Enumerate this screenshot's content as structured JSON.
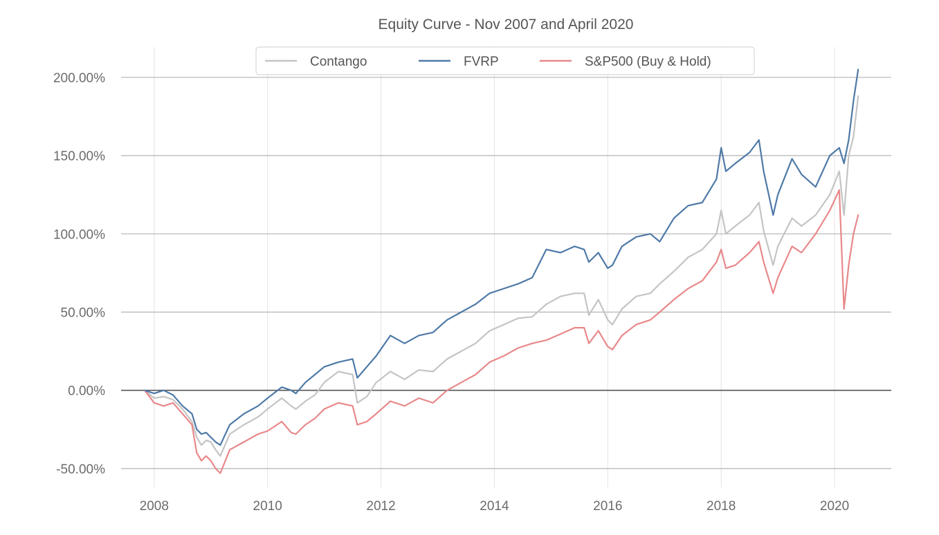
{
  "chart_data": {
    "type": "line",
    "title": "Equity Curve - Nov 2007 and April 2020",
    "xlabel": "",
    "ylabel": "",
    "x_ticks": [
      "2008",
      "2010",
      "2012",
      "2014",
      "2016",
      "2018",
      "2020"
    ],
    "y_ticks": [
      "-50.00%",
      "0.00%",
      "50.00%",
      "100.00%",
      "150.00%",
      "200.00%"
    ],
    "y_tick_values": [
      -50,
      0,
      50,
      100,
      150,
      200
    ],
    "xlim": [
      "2007-06",
      "2021-01"
    ],
    "ylim": [
      -62,
      215
    ],
    "grid": "horizontal-and-vertical",
    "legend": "top-center",
    "series": [
      {
        "name": "Contango",
        "color": "#c4c4c4",
        "points": [
          [
            "2007-11",
            0
          ],
          [
            "2008-01",
            -5
          ],
          [
            "2008-03",
            -4
          ],
          [
            "2008-05",
            -6
          ],
          [
            "2008-07",
            -12
          ],
          [
            "2008-09",
            -20
          ],
          [
            "2008-10",
            -30
          ],
          [
            "2008-11",
            -35
          ],
          [
            "2008-12",
            -32
          ],
          [
            "2009-01",
            -33
          ],
          [
            "2009-02",
            -38
          ],
          [
            "2009-03",
            -42
          ],
          [
            "2009-05",
            -28
          ],
          [
            "2009-08",
            -22
          ],
          [
            "2009-11",
            -17
          ],
          [
            "2010-01",
            -12
          ],
          [
            "2010-04",
            -5
          ],
          [
            "2010-06",
            -10
          ],
          [
            "2010-07",
            -12
          ],
          [
            "2010-09",
            -7
          ],
          [
            "2010-11",
            -3
          ],
          [
            "2011-01",
            5
          ],
          [
            "2011-04",
            12
          ],
          [
            "2011-07",
            10
          ],
          [
            "2011-08",
            -8
          ],
          [
            "2011-10",
            -4
          ],
          [
            "2011-12",
            5
          ],
          [
            "2012-03",
            12
          ],
          [
            "2012-06",
            7
          ],
          [
            "2012-09",
            13
          ],
          [
            "2012-12",
            12
          ],
          [
            "2013-03",
            20
          ],
          [
            "2013-06",
            25
          ],
          [
            "2013-09",
            30
          ],
          [
            "2013-12",
            38
          ],
          [
            "2014-03",
            42
          ],
          [
            "2014-06",
            46
          ],
          [
            "2014-09",
            47
          ],
          [
            "2014-12",
            55
          ],
          [
            "2015-03",
            60
          ],
          [
            "2015-06",
            62
          ],
          [
            "2015-08",
            62
          ],
          [
            "2015-09",
            48
          ],
          [
            "2015-11",
            58
          ],
          [
            "2016-01",
            45
          ],
          [
            "2016-02",
            42
          ],
          [
            "2016-04",
            52
          ],
          [
            "2016-07",
            60
          ],
          [
            "2016-10",
            62
          ],
          [
            "2016-12",
            68
          ],
          [
            "2017-03",
            76
          ],
          [
            "2017-06",
            85
          ],
          [
            "2017-09",
            90
          ],
          [
            "2017-12",
            100
          ],
          [
            "2018-01",
            115
          ],
          [
            "2018-02",
            100
          ],
          [
            "2018-04",
            105
          ],
          [
            "2018-07",
            112
          ],
          [
            "2018-09",
            120
          ],
          [
            "2018-10",
            102
          ],
          [
            "2018-12",
            80
          ],
          [
            "2019-01",
            92
          ],
          [
            "2019-04",
            110
          ],
          [
            "2019-06",
            105
          ],
          [
            "2019-09",
            112
          ],
          [
            "2019-12",
            125
          ],
          [
            "2020-02",
            140
          ],
          [
            "2020-03",
            112
          ],
          [
            "2020-04",
            150
          ],
          [
            "2020-05",
            162
          ],
          [
            "2020-06",
            188
          ]
        ]
      },
      {
        "name": "FVRP",
        "color": "#4e79a7",
        "points": [
          [
            "2007-11",
            0
          ],
          [
            "2008-01",
            -2
          ],
          [
            "2008-03",
            0
          ],
          [
            "2008-05",
            -3
          ],
          [
            "2008-07",
            -10
          ],
          [
            "2008-09",
            -15
          ],
          [
            "2008-10",
            -25
          ],
          [
            "2008-11",
            -28
          ],
          [
            "2008-12",
            -27
          ],
          [
            "2009-01",
            -30
          ],
          [
            "2009-02",
            -33
          ],
          [
            "2009-03",
            -35
          ],
          [
            "2009-05",
            -22
          ],
          [
            "2009-08",
            -15
          ],
          [
            "2009-11",
            -10
          ],
          [
            "2010-01",
            -5
          ],
          [
            "2010-04",
            2
          ],
          [
            "2010-06",
            0
          ],
          [
            "2010-07",
            -2
          ],
          [
            "2010-09",
            5
          ],
          [
            "2010-11",
            10
          ],
          [
            "2011-01",
            15
          ],
          [
            "2011-04",
            18
          ],
          [
            "2011-07",
            20
          ],
          [
            "2011-08",
            8
          ],
          [
            "2011-10",
            15
          ],
          [
            "2011-12",
            22
          ],
          [
            "2012-03",
            35
          ],
          [
            "2012-06",
            30
          ],
          [
            "2012-09",
            35
          ],
          [
            "2012-12",
            37
          ],
          [
            "2013-03",
            45
          ],
          [
            "2013-06",
            50
          ],
          [
            "2013-09",
            55
          ],
          [
            "2013-12",
            62
          ],
          [
            "2014-03",
            65
          ],
          [
            "2014-06",
            68
          ],
          [
            "2014-09",
            72
          ],
          [
            "2014-12",
            90
          ],
          [
            "2015-03",
            88
          ],
          [
            "2015-06",
            92
          ],
          [
            "2015-08",
            90
          ],
          [
            "2015-09",
            82
          ],
          [
            "2015-11",
            88
          ],
          [
            "2016-01",
            78
          ],
          [
            "2016-02",
            80
          ],
          [
            "2016-04",
            92
          ],
          [
            "2016-07",
            98
          ],
          [
            "2016-10",
            100
          ],
          [
            "2016-12",
            95
          ],
          [
            "2017-03",
            110
          ],
          [
            "2017-06",
            118
          ],
          [
            "2017-09",
            120
          ],
          [
            "2017-12",
            135
          ],
          [
            "2018-01",
            155
          ],
          [
            "2018-02",
            140
          ],
          [
            "2018-04",
            145
          ],
          [
            "2018-07",
            152
          ],
          [
            "2018-09",
            160
          ],
          [
            "2018-10",
            140
          ],
          [
            "2018-12",
            112
          ],
          [
            "2019-01",
            125
          ],
          [
            "2019-04",
            148
          ],
          [
            "2019-06",
            138
          ],
          [
            "2019-09",
            130
          ],
          [
            "2019-12",
            150
          ],
          [
            "2020-02",
            155
          ],
          [
            "2020-03",
            145
          ],
          [
            "2020-04",
            160
          ],
          [
            "2020-05",
            185
          ],
          [
            "2020-06",
            205
          ]
        ]
      },
      {
        "name": "S&P500 (Buy & Hold)",
        "color": "#e8888a",
        "points": [
          [
            "2007-11",
            0
          ],
          [
            "2008-01",
            -8
          ],
          [
            "2008-03",
            -10
          ],
          [
            "2008-05",
            -8
          ],
          [
            "2008-07",
            -15
          ],
          [
            "2008-09",
            -22
          ],
          [
            "2008-10",
            -40
          ],
          [
            "2008-11",
            -45
          ],
          [
            "2008-12",
            -42
          ],
          [
            "2009-01",
            -45
          ],
          [
            "2009-02",
            -50
          ],
          [
            "2009-03",
            -53
          ],
          [
            "2009-05",
            -38
          ],
          [
            "2009-08",
            -33
          ],
          [
            "2009-11",
            -28
          ],
          [
            "2010-01",
            -26
          ],
          [
            "2010-04",
            -20
          ],
          [
            "2010-06",
            -27
          ],
          [
            "2010-07",
            -28
          ],
          [
            "2010-09",
            -22
          ],
          [
            "2010-11",
            -18
          ],
          [
            "2011-01",
            -12
          ],
          [
            "2011-04",
            -8
          ],
          [
            "2011-07",
            -10
          ],
          [
            "2011-08",
            -22
          ],
          [
            "2011-10",
            -20
          ],
          [
            "2011-12",
            -15
          ],
          [
            "2012-03",
            -7
          ],
          [
            "2012-06",
            -10
          ],
          [
            "2012-09",
            -5
          ],
          [
            "2012-12",
            -8
          ],
          [
            "2013-03",
            0
          ],
          [
            "2013-06",
            5
          ],
          [
            "2013-09",
            10
          ],
          [
            "2013-12",
            18
          ],
          [
            "2014-03",
            22
          ],
          [
            "2014-06",
            27
          ],
          [
            "2014-09",
            30
          ],
          [
            "2014-12",
            32
          ],
          [
            "2015-03",
            36
          ],
          [
            "2015-06",
            40
          ],
          [
            "2015-08",
            40
          ],
          [
            "2015-09",
            30
          ],
          [
            "2015-11",
            38
          ],
          [
            "2016-01",
            28
          ],
          [
            "2016-02",
            26
          ],
          [
            "2016-04",
            35
          ],
          [
            "2016-07",
            42
          ],
          [
            "2016-10",
            45
          ],
          [
            "2016-12",
            50
          ],
          [
            "2017-03",
            58
          ],
          [
            "2017-06",
            65
          ],
          [
            "2017-09",
            70
          ],
          [
            "2017-12",
            82
          ],
          [
            "2018-01",
            90
          ],
          [
            "2018-02",
            78
          ],
          [
            "2018-04",
            80
          ],
          [
            "2018-07",
            88
          ],
          [
            "2018-09",
            95
          ],
          [
            "2018-10",
            82
          ],
          [
            "2018-12",
            62
          ],
          [
            "2019-01",
            72
          ],
          [
            "2019-04",
            92
          ],
          [
            "2019-06",
            88
          ],
          [
            "2019-09",
            100
          ],
          [
            "2019-12",
            115
          ],
          [
            "2020-02",
            128
          ],
          [
            "2020-03",
            52
          ],
          [
            "2020-04",
            80
          ],
          [
            "2020-05",
            100
          ],
          [
            "2020-06",
            112
          ]
        ]
      }
    ]
  }
}
